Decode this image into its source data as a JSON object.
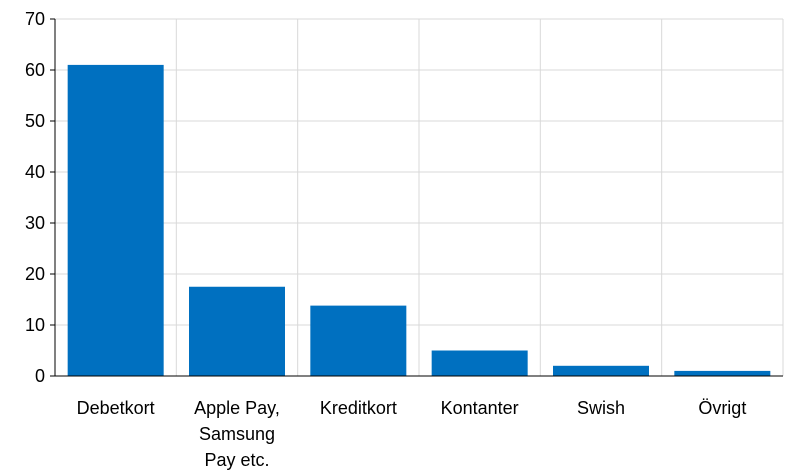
{
  "chart_data": {
    "type": "bar",
    "categories": [
      [
        "Debetkort"
      ],
      [
        "Apple Pay,",
        "Samsung",
        "Pay etc."
      ],
      [
        "Kreditkort"
      ],
      [
        "Kontanter"
      ],
      [
        "Swish"
      ],
      [
        "Övrigt"
      ]
    ],
    "values": [
      61,
      17.5,
      13.8,
      5,
      2,
      1
    ],
    "title": "",
    "xlabel": "",
    "ylabel": "",
    "ylim": [
      0,
      70
    ],
    "yticks": [
      0,
      10,
      20,
      30,
      40,
      50,
      60,
      70
    ],
    "grid": true,
    "bar_color": "#0070C0",
    "grid_color": "#D9D9D9",
    "axis_color": "#000000"
  }
}
